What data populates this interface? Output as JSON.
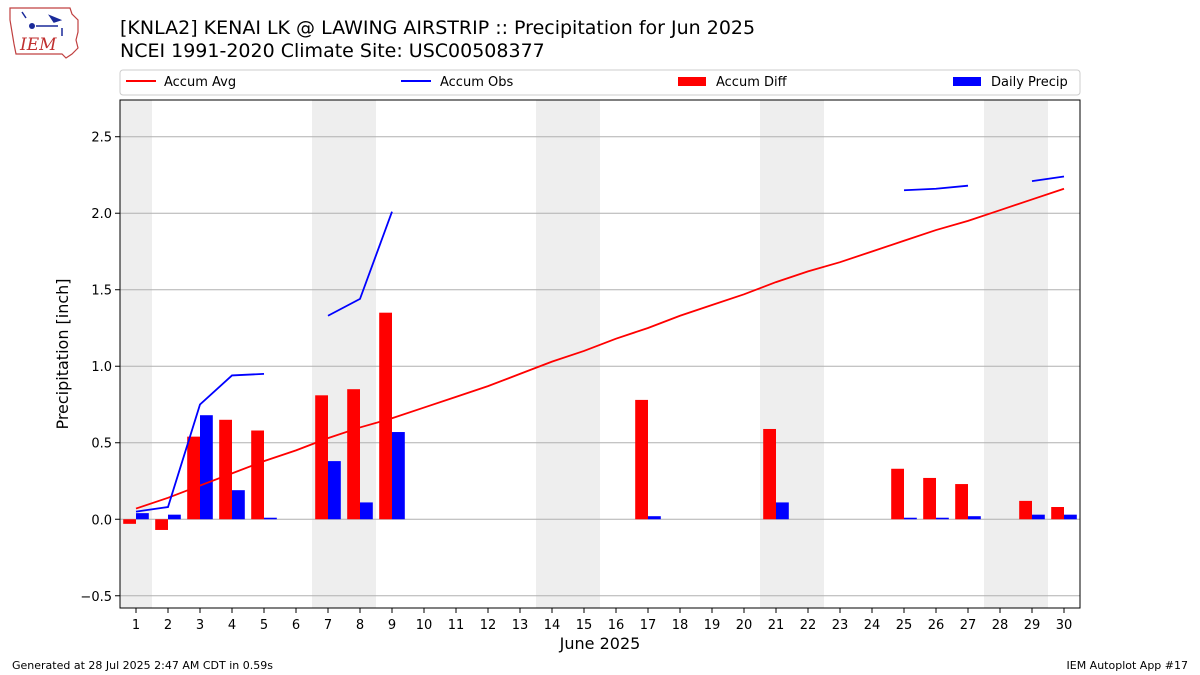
{
  "header": {
    "title_line1": "[KNLA2] KENAI LK @ LAWING AIRSTRIP :: Precipitation for Jun 2025",
    "title_line2": "NCEI 1991-2020 Climate Site: USC00508377",
    "logo_text": "IEM"
  },
  "footer": {
    "generated": "Generated at 28 Jul 2025 2:47 AM CDT in 0.59s",
    "app": "IEM Autoplot App #17"
  },
  "colors": {
    "accum_avg": "#ff0000",
    "accum_obs": "#0000ff",
    "accum_diff": "#ff0000",
    "daily_precip": "#0000ff",
    "weekend_shade": "#eeeeee",
    "grid": "#b0b0b0"
  },
  "chart_data": {
    "type": "bar",
    "xlabel": "June 2025",
    "ylabel": "Precipitation [inch]",
    "xlim": [
      0.5,
      30.5
    ],
    "ylim": [
      -0.58,
      2.74
    ],
    "yticks": [
      -0.5,
      0.0,
      0.5,
      1.0,
      1.5,
      2.0,
      2.5
    ],
    "ytick_labels": [
      "−0.5",
      "0.0",
      "0.5",
      "1.0",
      "1.5",
      "2.0",
      "2.5"
    ],
    "grid": "horizontal",
    "legend_placement": "top",
    "days": [
      1,
      2,
      3,
      4,
      5,
      6,
      7,
      8,
      9,
      10,
      11,
      12,
      13,
      14,
      15,
      16,
      17,
      18,
      19,
      20,
      21,
      22,
      23,
      24,
      25,
      26,
      27,
      28,
      29,
      30
    ],
    "weekend_spans": [
      [
        0.5,
        1.5
      ],
      [
        6.5,
        8.5
      ],
      [
        13.5,
        15.5
      ],
      [
        20.5,
        22.5
      ],
      [
        27.5,
        29.5
      ]
    ],
    "series": [
      {
        "name": "Accum Avg",
        "kind": "line",
        "values": [
          0.07,
          0.14,
          0.22,
          0.3,
          0.38,
          0.45,
          0.53,
          0.6,
          0.66,
          0.73,
          0.8,
          0.87,
          0.95,
          1.03,
          1.1,
          1.18,
          1.25,
          1.33,
          1.4,
          1.47,
          1.55,
          1.62,
          1.68,
          1.75,
          1.82,
          1.89,
          1.95,
          2.02,
          2.09,
          2.16
        ]
      },
      {
        "name": "Accum Obs",
        "kind": "line",
        "values": [
          0.05,
          0.08,
          0.75,
          0.94,
          0.95,
          null,
          1.33,
          1.44,
          2.01,
          null,
          null,
          null,
          null,
          null,
          null,
          null,
          null,
          null,
          null,
          null,
          null,
          null,
          null,
          null,
          2.15,
          2.16,
          2.18,
          null,
          2.21,
          2.24
        ]
      },
      {
        "name": "Accum Diff",
        "kind": "bar",
        "values": [
          -0.03,
          -0.07,
          0.54,
          0.65,
          0.58,
          null,
          0.81,
          0.85,
          1.35,
          null,
          null,
          null,
          null,
          null,
          null,
          null,
          0.78,
          null,
          null,
          null,
          0.59,
          null,
          null,
          null,
          0.33,
          0.27,
          0.23,
          null,
          0.12,
          0.08
        ]
      },
      {
        "name": "Daily Precip",
        "kind": "bar",
        "values": [
          0.04,
          0.03,
          0.68,
          0.19,
          0.01,
          null,
          0.38,
          0.11,
          0.57,
          null,
          null,
          null,
          null,
          null,
          null,
          null,
          0.02,
          null,
          null,
          null,
          0.11,
          null,
          null,
          null,
          0.01,
          0.01,
          0.02,
          null,
          0.03,
          0.03
        ]
      }
    ]
  }
}
